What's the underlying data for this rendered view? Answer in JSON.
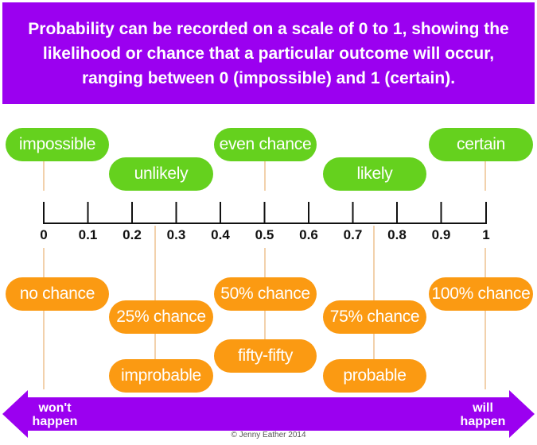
{
  "header": {
    "text": "Probability can be recorded on a scale of 0 to 1, showing the likelihood or chance that a particular outcome will occur, ranging between 0 (impossible) and 1 (certain)."
  },
  "scale": {
    "ticks": [
      "0",
      "0.1",
      "0.2",
      "0.3",
      "0.4",
      "0.5",
      "0.6",
      "0.7",
      "0.8",
      "0.9",
      "1"
    ]
  },
  "labels": {
    "impossible": "impossible",
    "unlikely": "unlikely",
    "even_chance": "even chance",
    "likely": "likely",
    "certain": "certain",
    "no_chance": "no chance",
    "chance_25": "25% chance",
    "improbable": "improbable",
    "chance_50": "50% chance",
    "fifty_fifty": "fifty-fifty",
    "chance_75": "75% chance",
    "probable": "probable",
    "chance_100": "100% chance"
  },
  "arrow": {
    "left_label": "won't happen",
    "right_label": "will happen"
  },
  "copyright": "© Jenny Eather 2014",
  "colors": {
    "purple": "#9b00f0",
    "green": "#65d11e",
    "orange": "#fb9a12"
  }
}
